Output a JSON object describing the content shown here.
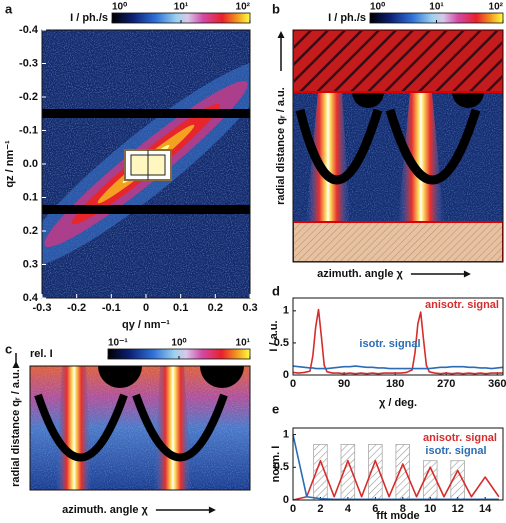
{
  "chart_data": [
    {
      "type": "heatmap",
      "panel": "a",
      "xlabel": "qy / nm⁻¹",
      "ylabel": "qz / nm⁻¹",
      "xlim": [
        -0.3,
        0.3
      ],
      "ylim": [
        -0.4,
        0.4
      ],
      "y_inverted": true,
      "xticks": [
        -0.3,
        -0.2,
        -0.1,
        0,
        0.1,
        0.2,
        0.3
      ],
      "yticks": [
        -0.4,
        -0.3,
        -0.2,
        -0.1,
        {
          "value": 0,
          "label": "0.0"
        },
        0.1,
        0.2,
        0.3,
        0.4
      ],
      "colorbar": {
        "label": "I / ph./s",
        "lim": [
          1,
          100
        ],
        "log": true,
        "ticks": [
          {
            "value": 1,
            "label": "10⁰"
          },
          {
            "value": 10,
            "label": "10¹"
          },
          {
            "value": 100,
            "label": "10²"
          }
        ]
      }
    },
    {
      "type": "heatmap",
      "panel": "b",
      "xlabel": "azimuth. angle χ",
      "ylabel": "radial distance qᵣ / a.u.",
      "colorbar": {
        "label": "I / ph./s",
        "lim": [
          1,
          100
        ],
        "log": true,
        "ticks": [
          {
            "value": 1,
            "label": "10⁰"
          },
          {
            "value": 10,
            "label": "10¹"
          },
          {
            "value": 100,
            "label": "10²"
          }
        ]
      }
    },
    {
      "type": "line",
      "panel": "d",
      "xlabel": "χ / deg.",
      "ylabel": "I / a.u.",
      "xlim": [
        0,
        370
      ],
      "ylim": [
        0,
        1.2
      ],
      "xticks": [
        0,
        90,
        180,
        270,
        360
      ],
      "yticks": [
        0,
        0.5,
        1
      ],
      "x": [
        0,
        10,
        20,
        30,
        35,
        40,
        45,
        50,
        55,
        60,
        70,
        80,
        90,
        100,
        110,
        120,
        130,
        140,
        150,
        160,
        170,
        180,
        190,
        200,
        210,
        215,
        220,
        225,
        230,
        235,
        240,
        250,
        260,
        270,
        280,
        290,
        300,
        310,
        320,
        330,
        340,
        350,
        360,
        370
      ],
      "series": [
        {
          "name": "anisotr. signal",
          "color": "#d62c2c",
          "values": [
            0.04,
            0.03,
            0.04,
            0.06,
            0.3,
            0.75,
            1.02,
            0.6,
            0.15,
            0.05,
            0.03,
            0.03,
            0.02,
            0.03,
            0.02,
            0.03,
            0.02,
            0.03,
            0.02,
            0.03,
            0.03,
            0.03,
            0.03,
            0.04,
            0.08,
            0.35,
            0.8,
            0.98,
            0.55,
            0.15,
            0.05,
            0.03,
            0.02,
            0.03,
            0.02,
            0.03,
            0.02,
            0.03,
            0.02,
            0.03,
            0.02,
            0.03,
            0.03,
            0.03
          ]
        },
        {
          "name": "isotr. signal",
          "color": "#2a6db5",
          "values": [
            0.14,
            0.13,
            0.12,
            0.11,
            0.11,
            0.1,
            0.1,
            0.1,
            0.1,
            0.1,
            0.11,
            0.12,
            0.13,
            0.13,
            0.14,
            0.13,
            0.12,
            0.12,
            0.11,
            0.11,
            0.1,
            0.1,
            0.1,
            0.1,
            0.1,
            0.1,
            0.1,
            0.1,
            0.1,
            0.1,
            0.1,
            0.11,
            0.12,
            0.12,
            0.13,
            0.13,
            0.13,
            0.12,
            0.12,
            0.11,
            0.11,
            0.1,
            0.11,
            0.12
          ]
        }
      ]
    },
    {
      "type": "heatmap",
      "panel": "c",
      "xlabel": "azimuth. angle χ",
      "ylabel": "radial distance qᵣ / a.u.",
      "colorbar": {
        "label": "rel. I",
        "lim": [
          0.1,
          10
        ],
        "log": true,
        "ticks": [
          {
            "value": 0.1,
            "label": "10⁻¹"
          },
          {
            "value": 1,
            "label": "10⁰"
          },
          {
            "value": 10,
            "label": "10¹"
          }
        ]
      }
    },
    {
      "type": "line",
      "panel": "e",
      "xlabel": "fft mode",
      "ylabel": "norm. I",
      "xlim": [
        0,
        15.3
      ],
      "ylim": [
        0,
        1.1
      ],
      "xticks": [
        0,
        2,
        4,
        6,
        8,
        10,
        12,
        14
      ],
      "yticks": [
        0,
        0.5,
        1
      ],
      "x": [
        0,
        1,
        2,
        3,
        4,
        5,
        6,
        7,
        8,
        9,
        10,
        11,
        12,
        13,
        14,
        15
      ],
      "series": [
        {
          "name": "anisotr. signal",
          "color": "#d62c2c",
          "values": [
            0,
            0.05,
            0.6,
            0.05,
            0.6,
            0.05,
            0.6,
            0.05,
            0.55,
            0.05,
            0.5,
            0.05,
            0.45,
            0.05,
            0.35,
            0.05
          ]
        },
        {
          "name": "isotr. signal",
          "color": "#2a6db5",
          "values": [
            1,
            0.05,
            0.02,
            0.01,
            0.01,
            0.01,
            0.01,
            0.01,
            0.01,
            0.01,
            0.01,
            0.01,
            0.01,
            0.01,
            0.01,
            0.01
          ]
        }
      ]
    }
  ]
}
